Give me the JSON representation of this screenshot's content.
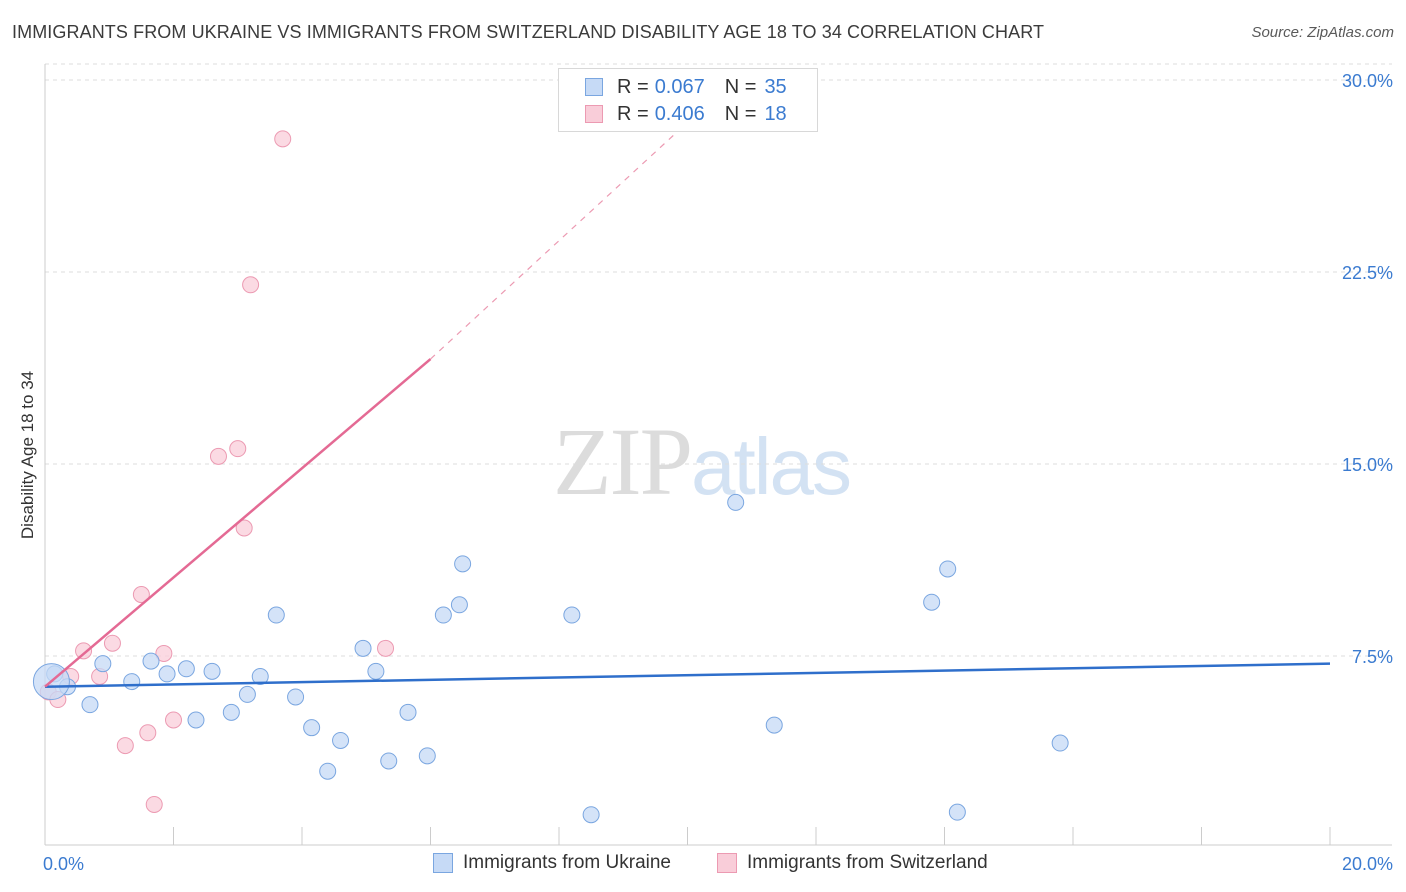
{
  "title": "IMMIGRANTS FROM UKRAINE VS IMMIGRANTS FROM SWITZERLAND DISABILITY AGE 18 TO 34 CORRELATION CHART",
  "source": "Source: ZipAtlas.com",
  "watermark": {
    "zip": "ZIP",
    "atlas": "atlas"
  },
  "legend": {
    "ukraine": {
      "r_label": "R =",
      "r_value": "0.067",
      "n_label": "N =",
      "n_value": "35"
    },
    "switzerland": {
      "r_label": "R =",
      "r_value": "0.406",
      "n_label": "N =",
      "n_value": "18"
    }
  },
  "colors": {
    "ukraine_fill": "#c6daf6",
    "ukraine_stroke": "#7aa6e0",
    "ukraine_line": "#2f6fcb",
    "switzerland_fill": "#f9cdd9",
    "switzerland_stroke": "#ec9ab2",
    "switzerland_line": "#e46a94",
    "tick_label": "#3b7bd0",
    "grid": "#dddddd"
  },
  "chart_data": {
    "type": "scatter",
    "title": "IMMIGRANTS FROM UKRAINE VS IMMIGRANTS FROM SWITZERLAND DISABILITY AGE 18 TO 34 CORRELATION CHART",
    "xlabel": "",
    "ylabel": "Disability Age 18 to 34",
    "xlim": [
      0,
      20
    ],
    "ylim": [
      0,
      31
    ],
    "x_tick_labels": [
      "0.0%",
      "20.0%"
    ],
    "y_ticks": [
      7.5,
      15.0,
      22.5,
      30.0
    ],
    "y_tick_labels": [
      "7.5%",
      "15.0%",
      "22.5%",
      "30.0%"
    ],
    "grid": true,
    "legend_position": "top-center",
    "series": [
      {
        "name": "Immigrants from Ukraine",
        "points": [
          [
            0.15,
            6.8
          ],
          [
            0.35,
            6.3
          ],
          [
            0.7,
            5.6
          ],
          [
            0.9,
            7.2
          ],
          [
            1.35,
            6.5
          ],
          [
            1.65,
            7.3
          ],
          [
            1.9,
            6.8
          ],
          [
            2.2,
            7.0
          ],
          [
            2.35,
            5.0
          ],
          [
            2.6,
            6.9
          ],
          [
            2.9,
            5.3
          ],
          [
            3.15,
            6.0
          ],
          [
            3.35,
            6.7
          ],
          [
            3.6,
            9.1
          ],
          [
            3.9,
            5.9
          ],
          [
            4.15,
            4.7
          ],
          [
            4.4,
            3.0
          ],
          [
            4.6,
            4.2
          ],
          [
            4.95,
            7.8
          ],
          [
            5.15,
            6.9
          ],
          [
            5.35,
            3.4
          ],
          [
            5.65,
            5.3
          ],
          [
            5.95,
            3.6
          ],
          [
            6.2,
            9.1
          ],
          [
            6.45,
            9.5
          ],
          [
            6.5,
            11.1
          ],
          [
            8.2,
            9.1
          ],
          [
            8.5,
            1.3
          ],
          [
            10.75,
            13.5
          ],
          [
            11.35,
            4.8
          ],
          [
            13.8,
            9.6
          ],
          [
            14.05,
            10.9
          ],
          [
            14.2,
            1.4
          ],
          [
            15.8,
            4.1
          ],
          [
            0.1,
            6.5
          ]
        ],
        "trend": {
          "x": [
            0,
            20
          ],
          "y": [
            6.3,
            7.2
          ]
        }
      },
      {
        "name": "Immigrants from Switzerland",
        "points": [
          [
            0.05,
            6.1
          ],
          [
            0.2,
            5.8
          ],
          [
            0.4,
            6.7
          ],
          [
            0.6,
            7.7
          ],
          [
            0.85,
            6.7
          ],
          [
            1.05,
            8.0
          ],
          [
            1.25,
            4.0
          ],
          [
            1.5,
            9.9
          ],
          [
            1.6,
            4.5
          ],
          [
            1.7,
            1.7
          ],
          [
            1.85,
            7.6
          ],
          [
            2.0,
            5.0
          ],
          [
            2.7,
            15.3
          ],
          [
            3.0,
            15.6
          ],
          [
            3.1,
            12.5
          ],
          [
            3.2,
            22.0
          ],
          [
            3.7,
            27.7
          ],
          [
            5.3,
            7.8
          ]
        ],
        "trend": {
          "x": [
            0,
            6
          ],
          "y": [
            6.3,
            19.1
          ]
        },
        "trend_extrapolated": {
          "x": [
            6,
            10.5
          ],
          "y": [
            19.1,
            29.5
          ]
        }
      }
    ]
  },
  "bottom_legend": {
    "ukraine_label": "Immigrants from Ukraine",
    "switzerland_label": "Immigrants from Switzerland"
  }
}
